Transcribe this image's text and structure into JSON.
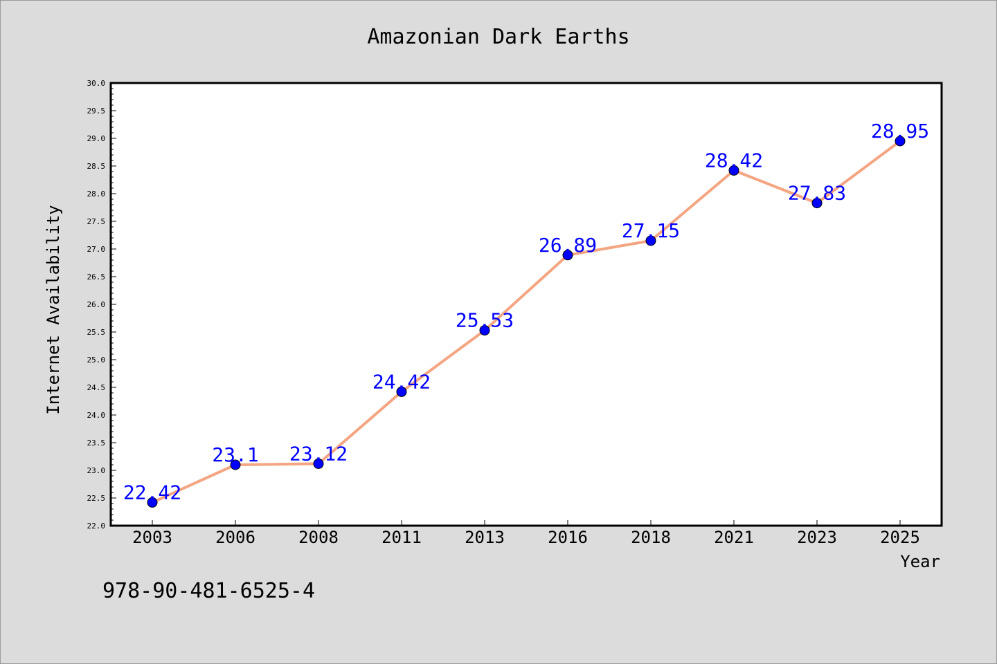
{
  "chart_data": {
    "type": "line",
    "title": "Amazonian Dark Earths",
    "xlabel": "Year",
    "ylabel": "Internet Availability",
    "categories": [
      "2003",
      "2006",
      "2008",
      "2011",
      "2013",
      "2016",
      "2018",
      "2021",
      "2023",
      "2025"
    ],
    "series": [
      {
        "values": [
          22.42,
          23.1,
          23.12,
          24.42,
          25.53,
          26.89,
          27.15,
          28.42,
          27.83,
          28.95
        ],
        "data_labels": [
          "22.42",
          "23.1",
          "23.12",
          "24.42",
          "25.53",
          "26.89",
          "27.15",
          "28.42",
          "27.83",
          "28.95"
        ],
        "line_color": "#f4a582",
        "marker_color": "#0000ff"
      }
    ],
    "ylim": [
      22.0,
      30.0
    ],
    "yticks": [
      "22.0",
      "22.5",
      "23.0",
      "23.5",
      "24.0",
      "24.5",
      "25.0",
      "25.5",
      "26.0",
      "26.5",
      "27.0",
      "27.5",
      "28.0",
      "28.5",
      "29.0",
      "29.5",
      "30.0"
    ],
    "grid": false,
    "legend": "none",
    "label_color": "#0000ff"
  },
  "footer_code": "978-90-481-6525-4",
  "colors": {
    "background": "#dcdcdc",
    "plot_background": "#ffffff",
    "axis": "#000000"
  }
}
